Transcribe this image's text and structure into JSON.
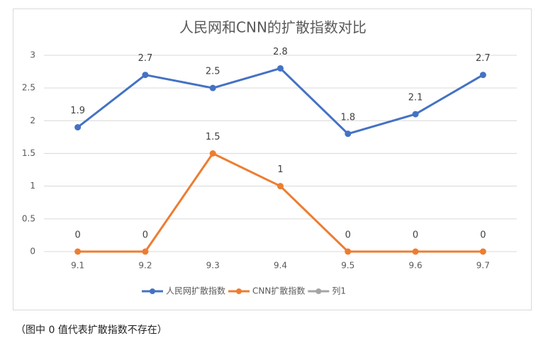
{
  "chart_data": {
    "type": "line",
    "title": "人民网和CNN的扩散指数对比",
    "categories": [
      "9.1",
      "9.2",
      "9.3",
      "9.4",
      "9.5",
      "9.6",
      "9.7"
    ],
    "series": [
      {
        "name": "人民网扩散指数",
        "color": "#4472c4",
        "values": [
          1.9,
          2.7,
          2.5,
          2.8,
          1.8,
          2.1,
          2.7
        ]
      },
      {
        "name": "CNN扩散指数",
        "color": "#ed7d31",
        "values": [
          0,
          0,
          1.5,
          1,
          0,
          0,
          0
        ]
      },
      {
        "name": "列1",
        "color": "#a5a5a5",
        "values": [
          null,
          null,
          null,
          null,
          null,
          null,
          null
        ]
      }
    ],
    "ylim": [
      0,
      3
    ],
    "yticks": [
      0,
      0.5,
      1,
      1.5,
      2,
      2.5,
      3
    ],
    "grid": true,
    "legend": "bottom"
  },
  "caption": "（图中 0 值代表扩散指数不存在）"
}
